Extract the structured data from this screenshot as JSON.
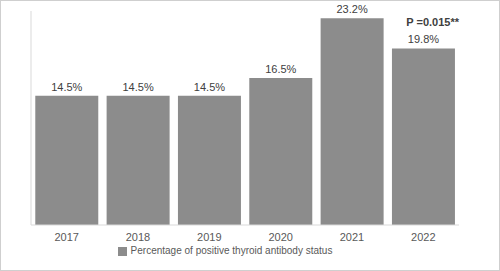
{
  "chart_data": {
    "type": "bar",
    "categories": [
      "2017",
      "2018",
      "2019",
      "2020",
      "2021",
      "2022"
    ],
    "series": [
      {
        "name": "Percentage of positive thyroid antibody status",
        "color": "#8c8c8c",
        "values": [
          14.5,
          14.5,
          14.5,
          16.5,
          23.2,
          19.8
        ],
        "value_labels": [
          "14.5%",
          "14.5%",
          "14.5%",
          "16.5%",
          "23.2%",
          "19.8%"
        ]
      }
    ],
    "ylim": [
      0,
      24
    ],
    "annotations": [
      "P =0.015**"
    ],
    "legend": "bottom",
    "data_labels": true,
    "tick_labels": "x",
    "grid": false
  }
}
